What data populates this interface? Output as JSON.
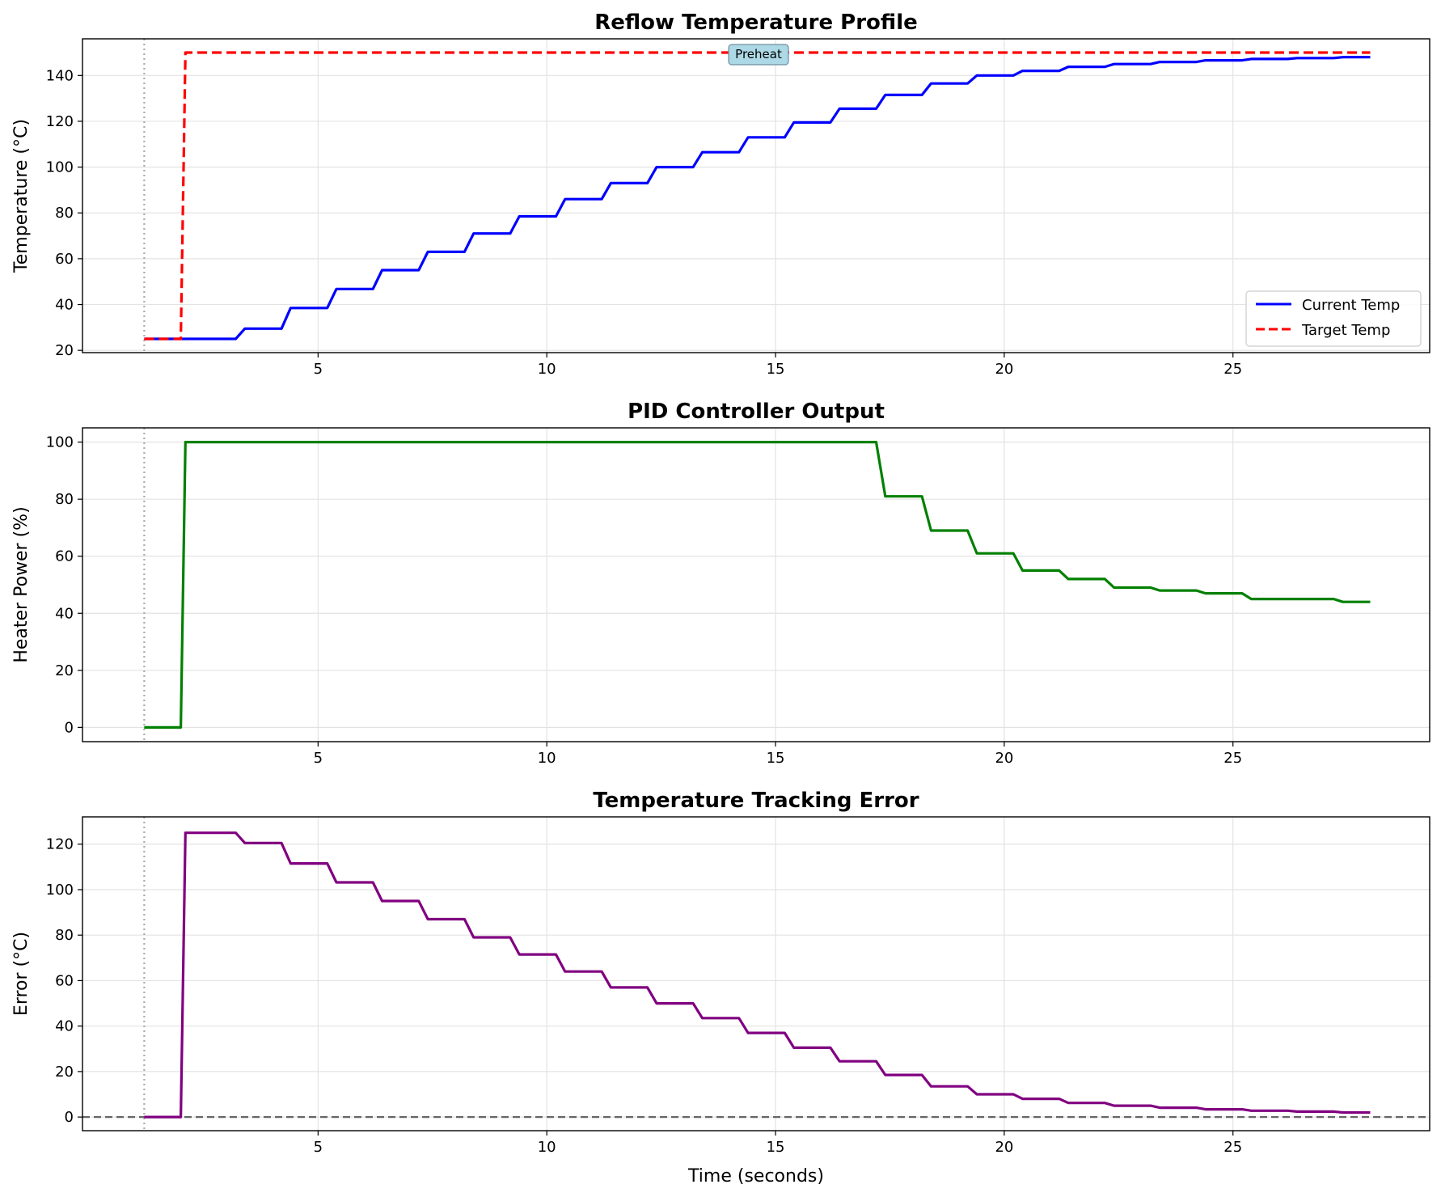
{
  "chart_data": [
    {
      "type": "line",
      "title": "Reflow Temperature Profile",
      "xlabel": "",
      "ylabel": "Temperature (°C)",
      "xlim": [
        -0.15,
        29.3
      ],
      "ylim": [
        19,
        156
      ],
      "xticks": [
        5,
        10,
        15,
        20,
        25
      ],
      "yticks": [
        20,
        40,
        60,
        80,
        100,
        120,
        140
      ],
      "grid": true,
      "legend_position": "lower-right",
      "start_marker": {
        "x": 1.2,
        "color": "#aaaaaa",
        "style": "dotted"
      },
      "annotations": [
        {
          "text": "Preheat",
          "x": 15,
          "y": 150
        }
      ],
      "series": [
        {
          "name": "Current Temp",
          "color": "#0000ff",
          "style": "solid",
          "x": [
            1.2,
            3.2,
            3.4,
            4.2,
            4.4,
            5.2,
            5.4,
            6.2,
            6.4,
            7.2,
            7.4,
            8.2,
            8.4,
            9.2,
            9.4,
            10.2,
            10.4,
            11.2,
            11.4,
            12.2,
            12.4,
            13.2,
            13.4,
            14.2,
            14.4,
            15.2,
            15.4,
            16.2,
            16.4,
            17.2,
            17.4,
            18.2,
            18.4,
            19.2,
            19.4,
            20.2,
            20.4,
            21.2,
            21.4,
            22.2,
            22.4,
            23.2,
            23.4,
            24.2,
            24.4,
            25.2,
            25.4,
            26.2,
            26.4,
            27.2,
            27.4,
            28.0
          ],
          "y": [
            25,
            25,
            29.5,
            29.5,
            38.5,
            38.5,
            46.8,
            46.8,
            55,
            55,
            63,
            63,
            71,
            71,
            78.5,
            78.5,
            86,
            86,
            93,
            93,
            100,
            100,
            106.5,
            106.5,
            113,
            113,
            119.5,
            119.5,
            125.5,
            125.5,
            131.5,
            131.5,
            136.5,
            136.5,
            140,
            140,
            142,
            142,
            143.8,
            143.8,
            145,
            145,
            145.9,
            145.9,
            146.6,
            146.6,
            147.2,
            147.2,
            147.6,
            147.6,
            148,
            148
          ]
        },
        {
          "name": "Target Temp",
          "color": "#ff0000",
          "style": "dashed",
          "x": [
            1.2,
            2.0,
            2.1,
            28.0
          ],
          "y": [
            25,
            25,
            150,
            150
          ]
        }
      ]
    },
    {
      "type": "line",
      "title": "PID Controller Output",
      "xlabel": "",
      "ylabel": "Heater Power (%)",
      "xlim": [
        -0.15,
        29.3
      ],
      "ylim": [
        -5,
        105
      ],
      "xticks": [
        5,
        10,
        15,
        20,
        25
      ],
      "yticks": [
        0,
        20,
        40,
        60,
        80,
        100
      ],
      "grid": true,
      "start_marker": {
        "x": 1.2,
        "color": "#aaaaaa",
        "style": "dotted"
      },
      "series": [
        {
          "color": "#008000",
          "style": "solid",
          "x": [
            1.2,
            2.0,
            2.1,
            17.2,
            17.4,
            18.2,
            18.4,
            19.2,
            19.4,
            20.2,
            20.4,
            21.2,
            21.4,
            22.2,
            22.4,
            23.2,
            23.4,
            24.2,
            24.4,
            25.2,
            25.4,
            27.2,
            27.4,
            28.0
          ],
          "y": [
            0,
            0,
            100,
            100,
            81,
            81,
            69,
            69,
            61,
            61,
            55,
            55,
            52,
            52,
            49,
            49,
            48,
            48,
            47,
            47,
            45,
            45,
            44,
            44
          ]
        }
      ]
    },
    {
      "type": "line",
      "title": "Temperature Tracking Error",
      "xlabel": "Time (seconds)",
      "ylabel": "Error (°C)",
      "xlim": [
        -0.15,
        29.3
      ],
      "ylim": [
        -6,
        132
      ],
      "xticks": [
        5,
        10,
        15,
        20,
        25
      ],
      "yticks": [
        0,
        20,
        40,
        60,
        80,
        100,
        120
      ],
      "grid": true,
      "start_marker": {
        "x": 1.2,
        "color": "#aaaaaa",
        "style": "dotted"
      },
      "reference_line": {
        "y": 0,
        "color": "#666666",
        "style": "dashed"
      },
      "series": [
        {
          "color": "#800080",
          "style": "solid",
          "x": [
            1.2,
            2.0,
            2.1,
            3.2,
            3.4,
            4.2,
            4.4,
            5.2,
            5.4,
            6.2,
            6.4,
            7.2,
            7.4,
            8.2,
            8.4,
            9.2,
            9.4,
            10.2,
            10.4,
            11.2,
            11.4,
            12.2,
            12.4,
            13.2,
            13.4,
            14.2,
            14.4,
            15.2,
            15.4,
            16.2,
            16.4,
            17.2,
            17.4,
            18.2,
            18.4,
            19.2,
            19.4,
            20.2,
            20.4,
            21.2,
            21.4,
            22.2,
            22.4,
            23.2,
            23.4,
            24.2,
            24.4,
            25.2,
            25.4,
            26.2,
            26.4,
            27.2,
            27.4,
            28.0
          ],
          "y": [
            0,
            0,
            125,
            125,
            120.5,
            120.5,
            111.5,
            111.5,
            103.2,
            103.2,
            95,
            95,
            87,
            87,
            79,
            79,
            71.5,
            71.5,
            64,
            64,
            57,
            57,
            50,
            50,
            43.5,
            43.5,
            37,
            37,
            30.5,
            30.5,
            24.5,
            24.5,
            18.5,
            18.5,
            13.5,
            13.5,
            10,
            10,
            8,
            8,
            6.2,
            6.2,
            5,
            5,
            4.1,
            4.1,
            3.4,
            3.4,
            2.8,
            2.8,
            2.4,
            2.4,
            2,
            2
          ]
        }
      ]
    }
  ]
}
